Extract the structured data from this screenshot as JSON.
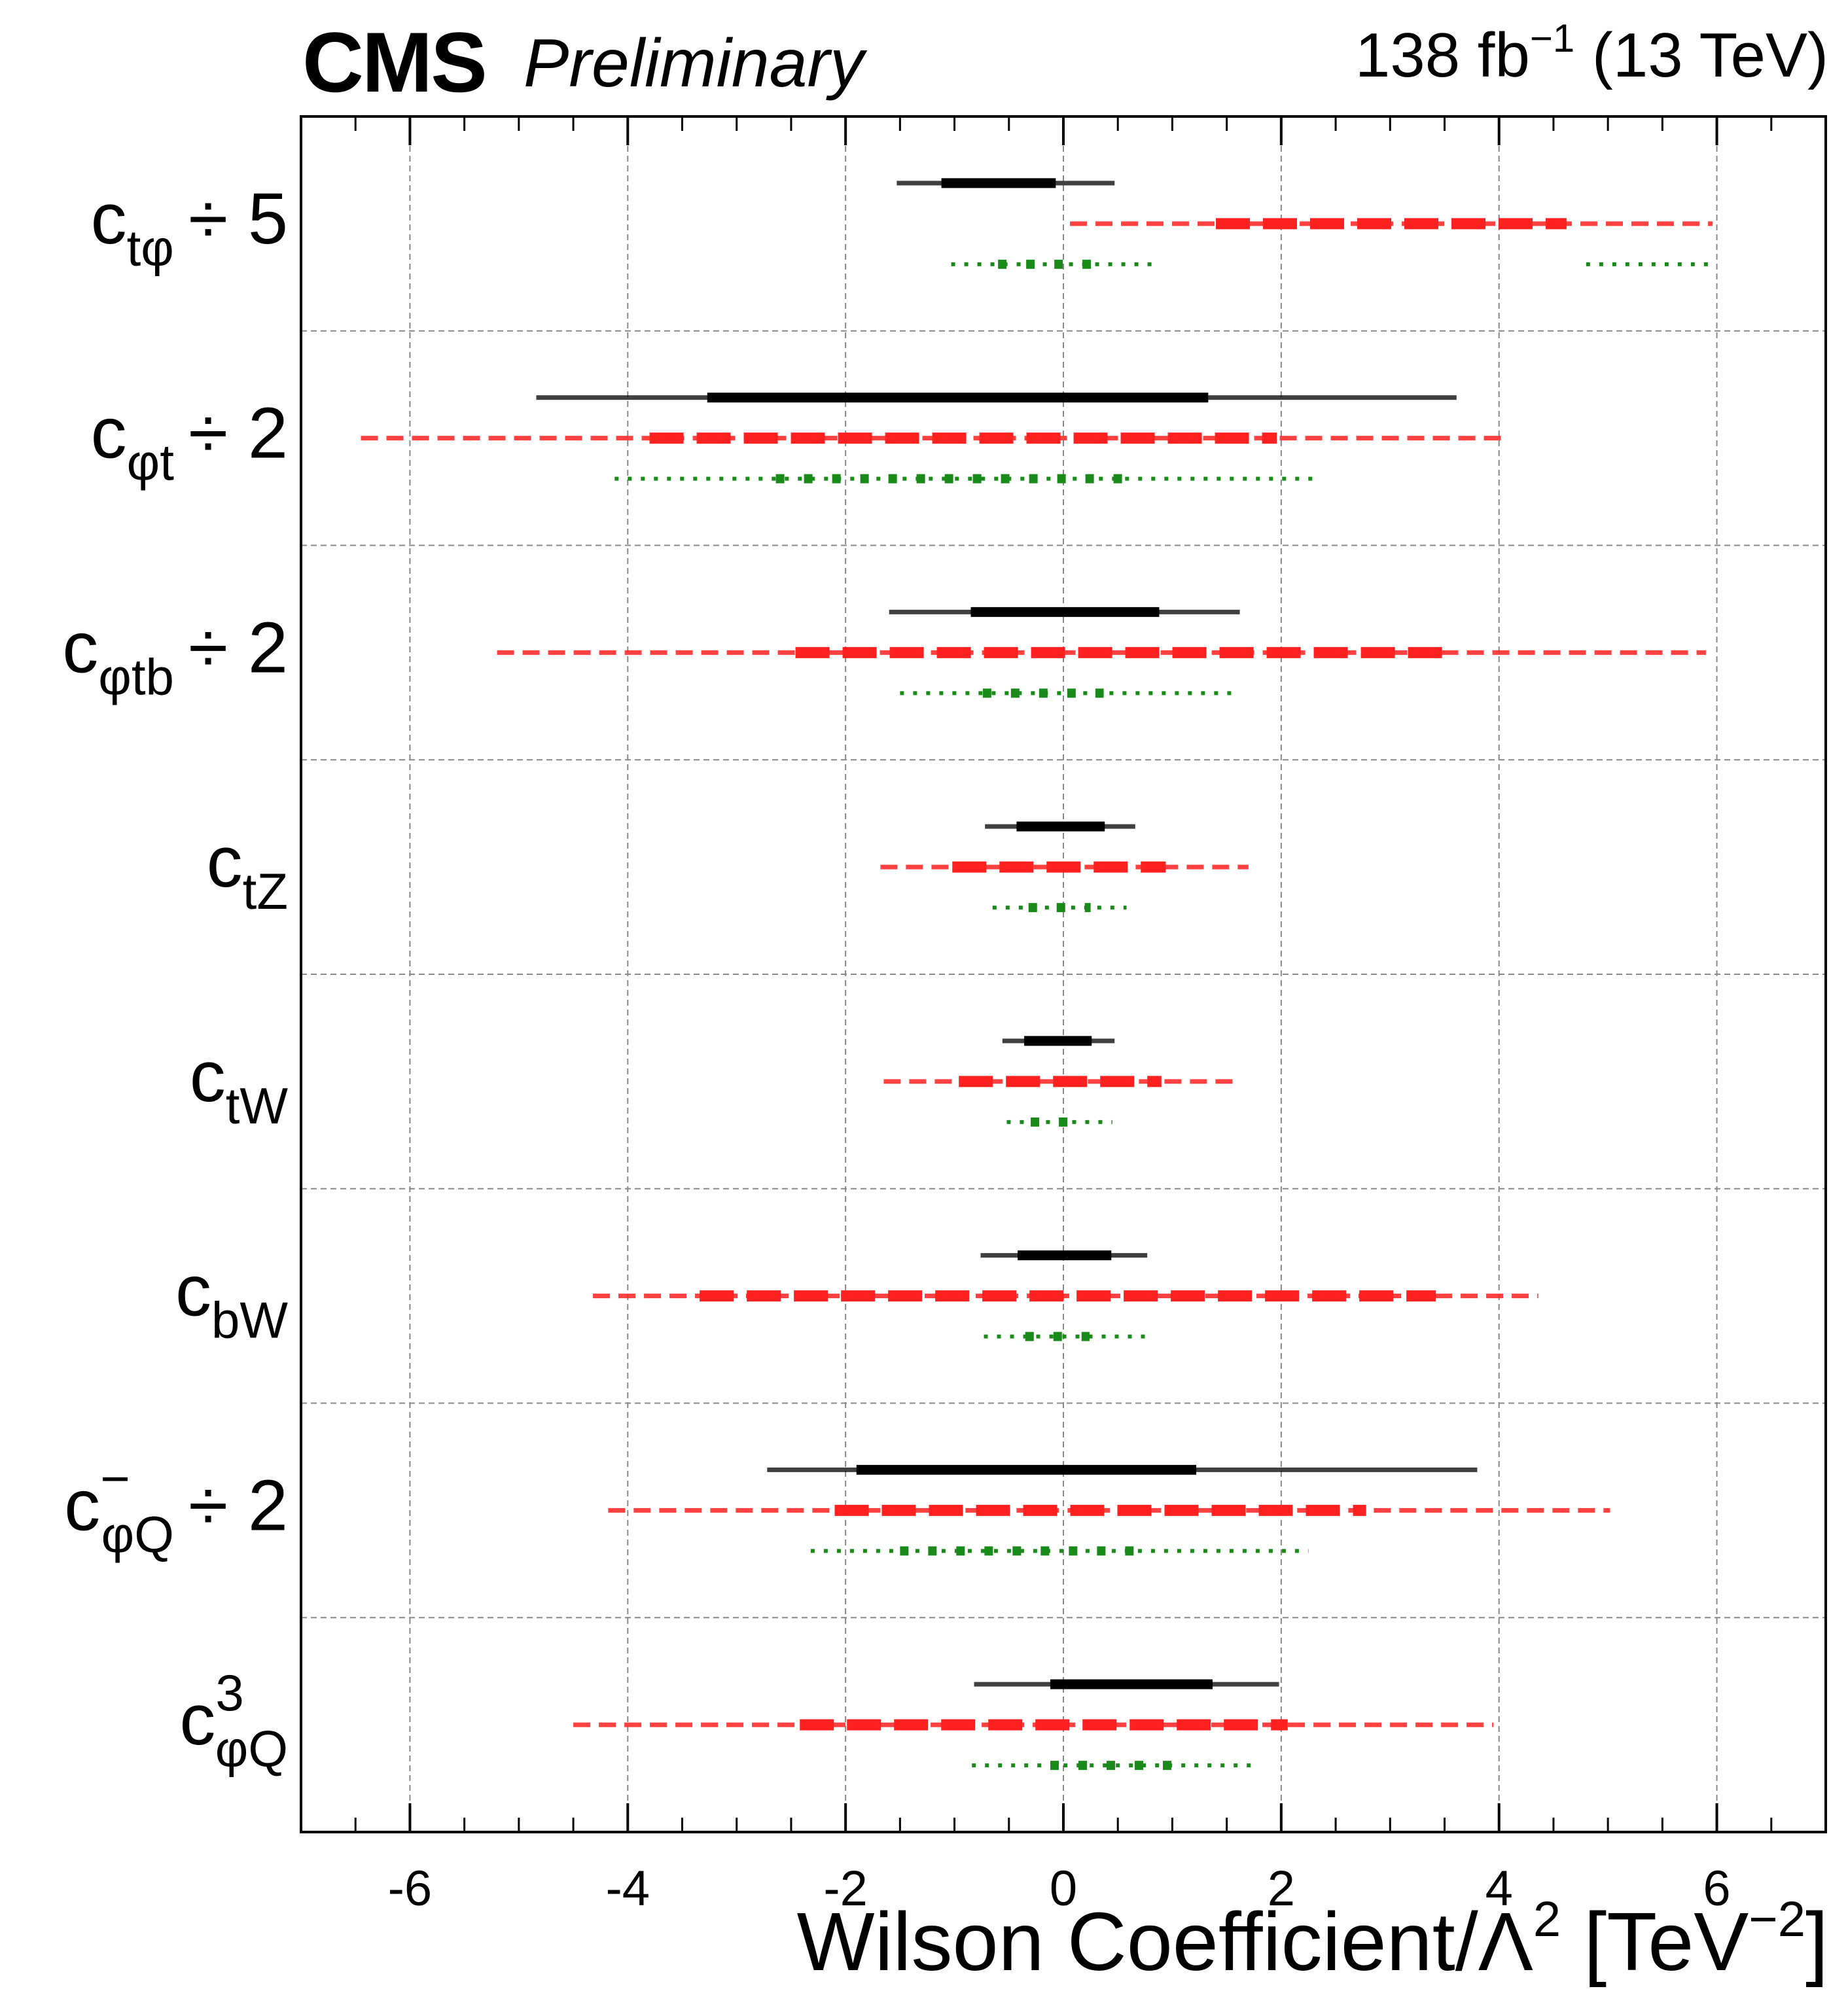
{
  "header": {
    "experiment": "CMS",
    "status": "Preliminary",
    "lumi_value": "138 fb",
    "lumi_exp": "−1",
    "energy": "(13 TeV)"
  },
  "xlabel": {
    "main": "Wilson Coefficient/Λ",
    "pow": "2",
    "unit_open": " [TeV",
    "unit_pow": "−2",
    "unit_close": "]"
  },
  "chart_data": {
    "type": "interval",
    "xlim": [
      -7.0,
      7.0
    ],
    "xticks": [
      -6,
      -4,
      -2,
      0,
      2,
      4,
      6
    ],
    "grid": true,
    "colors": {
      "black": "#000000",
      "red": "#ff2020",
      "green": "#1a8a1a",
      "grid": "#888888"
    },
    "rows": [
      {
        "label_main": "c",
        "label_sub": "tφ",
        "label_sup": "",
        "label_suffix": "÷ 5",
        "black": {
          "outer": [
            [
              -1.53,
              0.47
            ]
          ],
          "inner": [
            [
              -1.12,
              -0.07
            ]
          ]
        },
        "red": {
          "outer": [
            [
              0.06,
              5.96
            ]
          ],
          "inner": [
            [
              1.4,
              4.62
            ]
          ]
        },
        "green": {
          "outer": [
            [
              -1.03,
              0.88
            ],
            [
              4.8,
              5.96
            ]
          ],
          "inner": [
            [
              -0.6,
              0.27
            ]
          ]
        }
      },
      {
        "label_main": "c",
        "label_sub": "φt",
        "label_sup": "",
        "label_suffix": "÷ 2",
        "black": {
          "outer": [
            [
              -4.84,
              3.61
            ]
          ],
          "inner": [
            [
              -3.27,
              1.33
            ]
          ]
        },
        "red": {
          "outer": [
            [
              -6.45,
              4.05
            ]
          ],
          "inner": [
            [
              -3.8,
              1.96
            ]
          ]
        },
        "green": {
          "outer": [
            [
              -4.12,
              2.33
            ]
          ],
          "inner": [
            [
              -2.64,
              0.62
            ]
          ]
        }
      },
      {
        "label_main": "c",
        "label_sub": "φtb",
        "label_sup": "",
        "label_suffix": "÷ 2",
        "black": {
          "outer": [
            [
              -1.6,
              1.62
            ]
          ],
          "inner": [
            [
              -0.85,
              0.88
            ]
          ]
        },
        "red": {
          "outer": [
            [
              -5.2,
              5.9
            ]
          ],
          "inner": [
            [
              -2.46,
              3.49
            ]
          ]
        },
        "green": {
          "outer": [
            [
              -1.5,
              1.57
            ]
          ],
          "inner": [
            [
              -0.74,
              0.37
            ]
          ]
        }
      },
      {
        "label_main": "c",
        "label_sub": "tZ",
        "label_sup": "",
        "label_suffix": "",
        "black": {
          "outer": [
            [
              -0.72,
              0.66
            ]
          ],
          "inner": [
            [
              -0.43,
              0.38
            ]
          ]
        },
        "red": {
          "outer": [
            [
              -1.68,
              1.7
            ]
          ],
          "inner": [
            [
              -1.02,
              0.94
            ]
          ]
        },
        "green": {
          "outer": [
            [
              -0.65,
              0.58
            ]
          ],
          "inner": [
            [
              -0.32,
              0.25
            ]
          ]
        }
      },
      {
        "label_main": "c",
        "label_sub": "tW",
        "label_sup": "",
        "label_suffix": "",
        "black": {
          "outer": [
            [
              -0.56,
              0.47
            ]
          ],
          "inner": [
            [
              -0.36,
              0.26
            ]
          ]
        },
        "red": {
          "outer": [
            [
              -1.65,
              1.58
            ]
          ],
          "inner": [
            [
              -0.96,
              0.9
            ]
          ]
        },
        "green": {
          "outer": [
            [
              -0.52,
              0.45
            ]
          ],
          "inner": [
            [
              -0.3,
              0.1
            ]
          ]
        }
      },
      {
        "label_main": "c",
        "label_sub": "bW",
        "label_sup": "",
        "label_suffix": "",
        "black": {
          "outer": [
            [
              -0.76,
              0.77
            ]
          ],
          "inner": [
            [
              -0.42,
              0.44
            ]
          ]
        },
        "red": {
          "outer": [
            [
              -4.32,
              4.36
            ]
          ],
          "inner": [
            [
              -3.34,
              3.42
            ]
          ]
        },
        "green": {
          "outer": [
            [
              -0.73,
              0.76
            ]
          ],
          "inner": [
            [
              -0.35,
              0.24
            ]
          ]
        }
      },
      {
        "label_main": "c",
        "label_sub": "φQ",
        "label_sup": "−",
        "label_suffix": "÷ 2",
        "black": {
          "outer": [
            [
              -2.72,
              3.8
            ]
          ],
          "inner": [
            [
              -1.9,
              1.22
            ]
          ]
        },
        "red": {
          "outer": [
            [
              -4.18,
              5.02
            ]
          ],
          "inner": [
            [
              -2.1,
              2.78
            ]
          ]
        },
        "green": {
          "outer": [
            [
              -2.32,
              2.25
            ]
          ],
          "inner": [
            [
              -1.5,
              0.73
            ]
          ]
        }
      },
      {
        "label_main": "c",
        "label_sub": "φQ",
        "label_sup": "3",
        "label_suffix": "",
        "black": {
          "outer": [
            [
              -0.82,
              1.98
            ]
          ],
          "inner": [
            [
              -0.12,
              1.37
            ]
          ]
        },
        "red": {
          "outer": [
            [
              -4.5,
              3.95
            ]
          ],
          "inner": [
            [
              -2.42,
              2.06
            ]
          ]
        },
        "green": {
          "outer": [
            [
              -0.84,
              1.76
            ]
          ],
          "inner": [
            [
              -0.12,
              1.0
            ]
          ]
        }
      }
    ]
  }
}
